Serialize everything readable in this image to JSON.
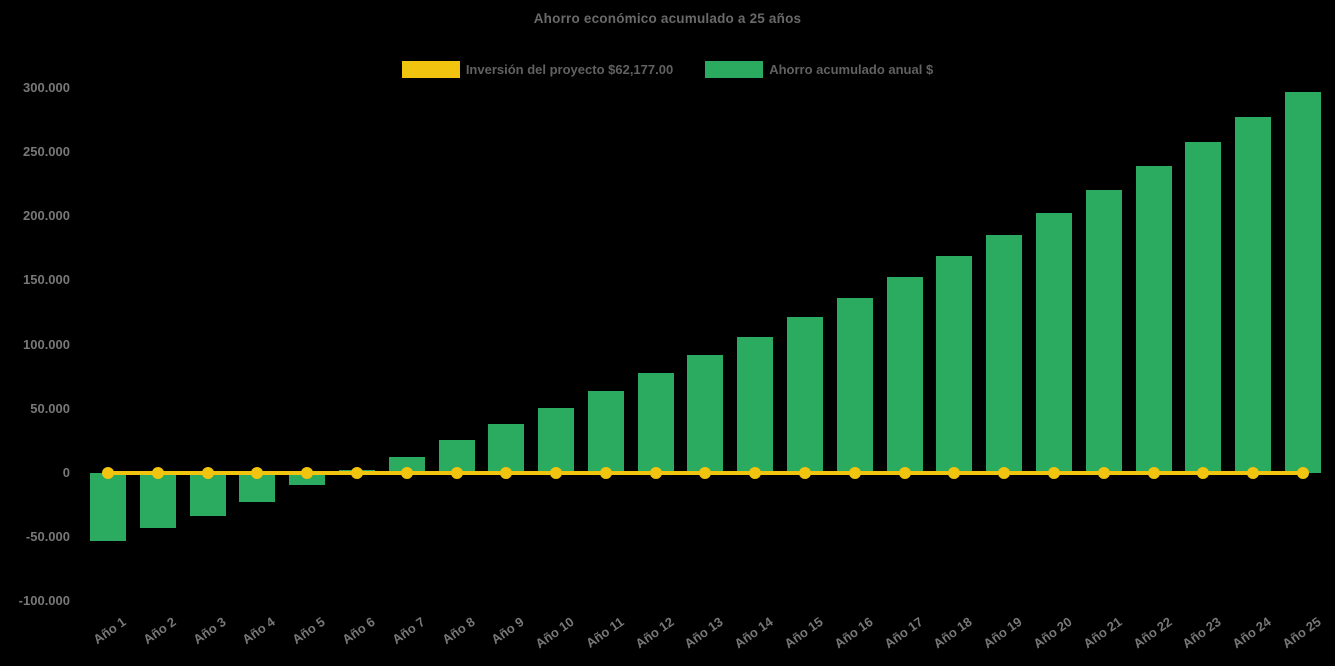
{
  "title": "Ahorro económico acumulado a 25 años",
  "legend": {
    "items": [
      {
        "label": "Inversión del proyecto $62,177.00",
        "color": "#f0c40f"
      },
      {
        "label": "Ahorro acumulado anual $",
        "color": "#2aab60"
      }
    ]
  },
  "colors": {
    "background": "#000000",
    "bar_green": "#2aab60",
    "line_yellow": "#f0c40f",
    "title_text": "#696969",
    "axis_text": "#787878"
  },
  "chart_data": {
    "type": "bar",
    "title": "Ahorro económico acumulado a 25 años",
    "categories": [
      "Año 1",
      "Año 2",
      "Año 3",
      "Año 4",
      "Año 5",
      "Año 6",
      "Año 7",
      "Año 8",
      "Año 9",
      "Año 10",
      "Año 11",
      "Año 12",
      "Año 13",
      "Año 14",
      "Año 15",
      "Año 16",
      "Año 17",
      "Año 18",
      "Año 19",
      "Año 20",
      "Año 21",
      "Año 22",
      "Año 23",
      "Año 24",
      "Año 25"
    ],
    "series": [
      {
        "name": "Ahorro acumulado anual $",
        "type": "bar",
        "color": "#2aab60",
        "values": [
          -53100,
          -42900,
          -33800,
          -22600,
          -9600,
          2000,
          12700,
          25600,
          38400,
          50400,
          63900,
          77600,
          91900,
          105700,
          121200,
          136100,
          152400,
          169200,
          185600,
          202300,
          220400,
          239100,
          258000,
          277300,
          296700
        ]
      },
      {
        "name": "Inversión del proyecto $62,177.00",
        "type": "line",
        "color": "#f0c40f",
        "values": [
          0,
          0,
          0,
          0,
          0,
          0,
          0,
          0,
          0,
          0,
          0,
          0,
          0,
          0,
          0,
          0,
          0,
          0,
          0,
          0,
          0,
          0,
          0,
          0,
          0
        ]
      }
    ],
    "xlabel": "",
    "ylabel": "",
    "ylim": [
      -100000,
      300000
    ],
    "ytick_step": 50000,
    "ytick_labels": [
      "-100.000",
      "-50.000",
      "0",
      "50.000",
      "100.000",
      "150.000",
      "200.000",
      "250.000",
      "300.000"
    ],
    "grid": false,
    "legend_position": "top",
    "background": "#000000"
  }
}
